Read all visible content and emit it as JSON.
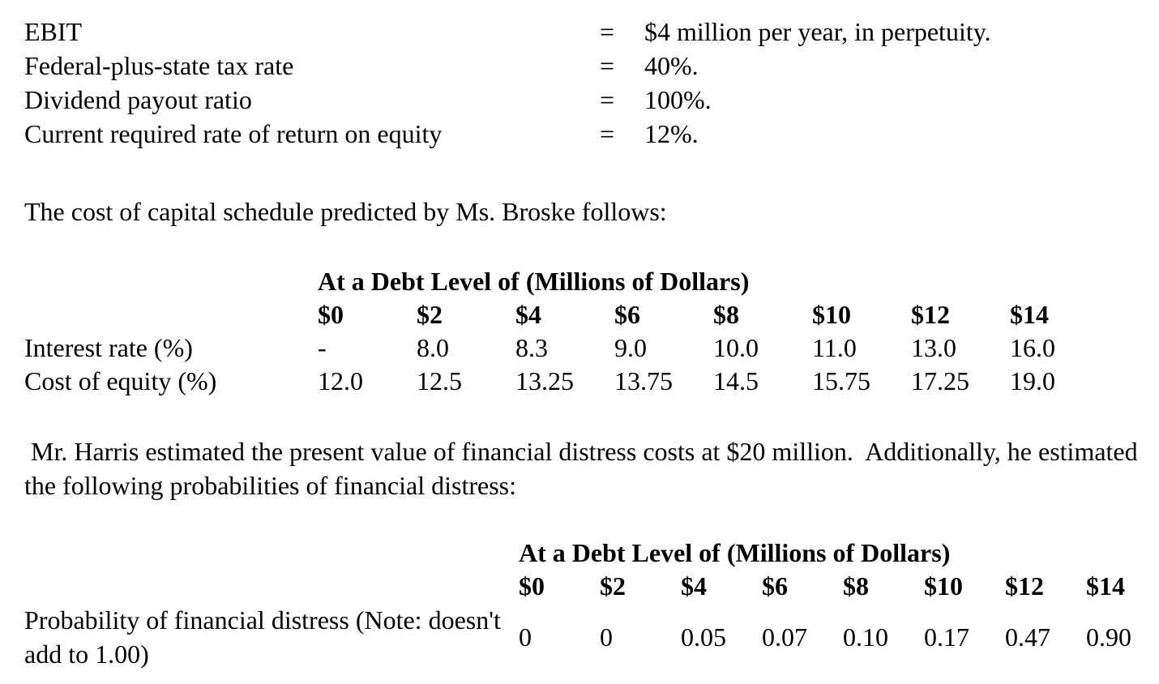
{
  "theme": {
    "background": "#ffffff",
    "text_color": "#000000"
  },
  "facts": [
    {
      "label": "EBIT",
      "eq": "=",
      "value": "$4 million per year, in perpetuity."
    },
    {
      "label": "Federal-plus-state tax rate",
      "eq": "=",
      "value": "40%."
    },
    {
      "label": "Dividend payout ratio",
      "eq": "=",
      "value": "100%."
    },
    {
      "label": "Current required rate of return on equity",
      "eq": "=",
      "value": "12%."
    }
  ],
  "paragraphs": {
    "broske": "The cost of capital schedule predicted by Ms. Broske follows:",
    "harris": " Mr. Harris estimated the present value of financial distress costs at $20 million.  Additionally, he estimated the following probabilities of financial distress:"
  },
  "table1": {
    "title": "At a Debt Level of (Millions of Dollars)",
    "columns": [
      "$0",
      "$2",
      "$4",
      "$6",
      "$8",
      "$10",
      "$12",
      "$14"
    ],
    "rows": [
      {
        "label": "Interest rate (%)",
        "values": [
          "-",
          "8.0",
          "8.3",
          "9.0",
          "10.0",
          "11.0",
          "13.0",
          "16.0"
        ]
      },
      {
        "label": "Cost of equity (%)",
        "values": [
          "12.0",
          "12.5",
          "13.25",
          "13.75",
          "14.5",
          "15.75",
          "17.25",
          "19.0"
        ]
      }
    ]
  },
  "table2": {
    "title": "At a Debt Level of (Millions of Dollars)",
    "columns": [
      "$0",
      "$2",
      "$4",
      "$6",
      "$8",
      "$10",
      "$12",
      "$14"
    ],
    "rows": [
      {
        "label": "Probability of financial distress (Note: doesn't add to 1.00)",
        "values": [
          "0",
          "0",
          "0.05",
          "0.07",
          "0.10",
          "0.17",
          "0.47",
          "0.90"
        ]
      }
    ]
  }
}
